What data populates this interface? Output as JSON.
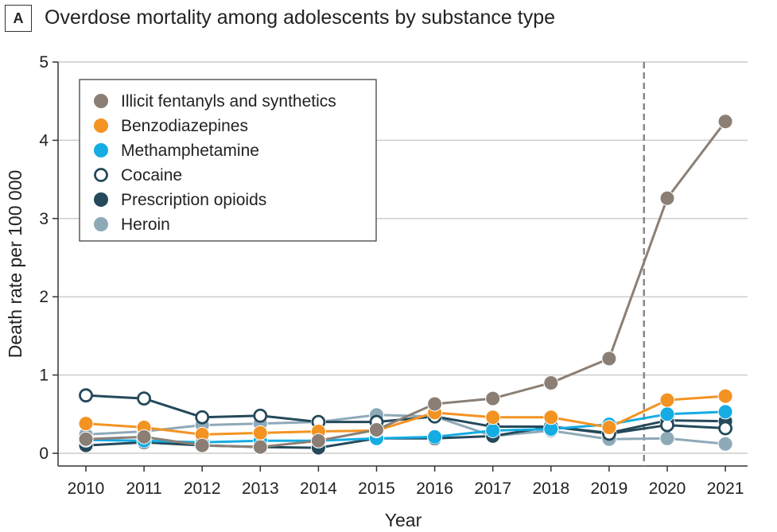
{
  "panel_label": "A",
  "colors": {
    "illicit_fentanyls": "#8b7f75",
    "benzodiazepines": "#f39322",
    "methamphetamine": "#14ace3",
    "cocaine": "#23495a",
    "prescription_opioids": "#25495a",
    "heroin": "#8ea9b8",
    "grid": "#cccccc",
    "dashed_line": "#888888"
  },
  "chart_data": {
    "type": "line",
    "title": "Overdose mortality among adolescents by substance type",
    "xlabel": "Year",
    "ylabel": "Death rate per 100 000",
    "categories": [
      "2010",
      "2011",
      "2012",
      "2013",
      "2014",
      "2015",
      "2016",
      "2017",
      "2018",
      "2019",
      "2020",
      "2021"
    ],
    "yticks": [
      "0",
      "1",
      "2",
      "3",
      "4",
      "5"
    ],
    "ylim": [
      0,
      5
    ],
    "grid": true,
    "legend_position": "top-left",
    "reference_line_after": "2019",
    "series": [
      {
        "name": "Illicit fentanyls and synthetics",
        "color_key": "illicit_fentanyls",
        "marker": "filled",
        "values": [
          0.18,
          0.21,
          0.1,
          0.08,
          0.16,
          0.3,
          0.63,
          0.7,
          0.9,
          1.21,
          3.26,
          4.24
        ]
      },
      {
        "name": "Benzodiazepines",
        "color_key": "benzodiazepines",
        "marker": "filled",
        "values": [
          0.38,
          0.33,
          0.24,
          0.26,
          0.28,
          0.29,
          0.52,
          0.46,
          0.46,
          0.33,
          0.68,
          0.73
        ]
      },
      {
        "name": "Methamphetamine",
        "color_key": "methamphetamine",
        "marker": "filled",
        "values": [
          0.17,
          0.16,
          0.14,
          0.16,
          0.16,
          0.19,
          0.21,
          0.29,
          0.31,
          0.37,
          0.5,
          0.53
        ]
      },
      {
        "name": "Cocaine",
        "color_key": "cocaine",
        "marker": "open",
        "values": [
          0.74,
          0.7,
          0.46,
          0.48,
          0.4,
          0.4,
          0.47,
          0.34,
          0.34,
          0.25,
          0.36,
          0.32
        ]
      },
      {
        "name": "Prescription opioids",
        "color_key": "prescription_opioids",
        "marker": "filled",
        "values": [
          0.1,
          0.14,
          0.1,
          0.08,
          0.07,
          0.19,
          0.19,
          0.22,
          0.34,
          0.26,
          0.42,
          0.41
        ]
      },
      {
        "name": "Heroin",
        "color_key": "heroin",
        "marker": "filled",
        "values": [
          0.24,
          0.28,
          0.36,
          0.38,
          0.4,
          0.49,
          0.47,
          0.22,
          0.29,
          0.18,
          0.19,
          0.12
        ]
      }
    ]
  }
}
